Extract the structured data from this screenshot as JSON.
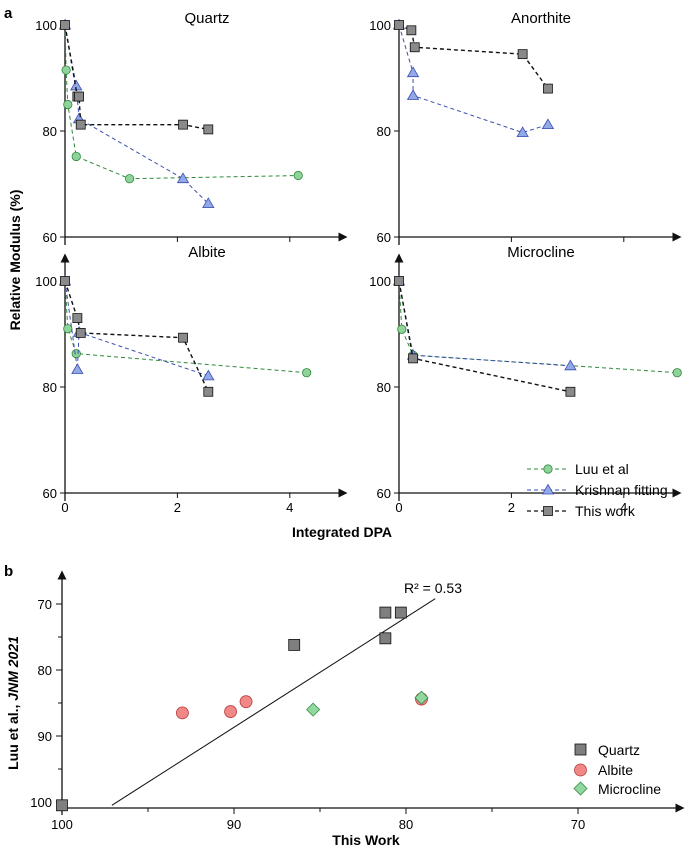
{
  "colors": {
    "luu": "#8fd39a",
    "luu_stroke": "#2e8b3d",
    "krishnan": "#93a8e6",
    "krishnan_stroke": "#3a4fb0",
    "thiswork": "#8a8a8a",
    "thiswork_stroke": "#111111",
    "albite_b": "#f08888",
    "albite_b_stroke": "#b83a3a",
    "micro_b": "#8fd89e",
    "micro_b_stroke": "#3a8b4a",
    "quartz_b": "#7f7f7f"
  },
  "chart_data": [
    {
      "panel_label": "a",
      "type": "line",
      "ylabel": "Relative Modulus (%)",
      "xlabel": "Integrated DPA",
      "xlim": [
        0,
        5
      ],
      "xticks": [
        "0",
        "2",
        "4"
      ],
      "ylim": [
        60,
        103
      ],
      "yticks": [
        "60",
        "80",
        "100"
      ],
      "legend": {
        "placement": "bottom-right of Microcline panel",
        "entries": [
          "Luu et al",
          "Krishnan fitting",
          "This work"
        ]
      },
      "panels": [
        {
          "title": "Quartz",
          "series": [
            {
              "name": "Luu et al",
              "x": [
                0,
                0.02,
                0.05,
                0.2,
                1.15,
                4.15
              ],
              "y": [
                100,
                91.5,
                85,
                75.2,
                71,
                71.6
              ]
            },
            {
              "name": "Krishnan fitting",
              "x": [
                0,
                0.2,
                0.25,
                2.1,
                2.55
              ],
              "y": [
                100,
                88.5,
                82.3,
                71,
                66.3
              ]
            },
            {
              "name": "This work",
              "x": [
                0,
                0.22,
                0.25,
                0.28,
                2.1,
                2.55
              ],
              "y": [
                100,
                86.5,
                86.5,
                81.2,
                81.2,
                80.3
              ]
            }
          ]
        },
        {
          "title": "Anorthite",
          "series": [
            {
              "name": "Krishnan fitting",
              "x": [
                0,
                0.25,
                0.25,
                2.2,
                2.65
              ],
              "y": [
                100,
                91,
                86.7,
                79.7,
                81.2
              ]
            },
            {
              "name": "This work",
              "x": [
                0,
                0.22,
                0.28,
                2.2,
                2.65
              ],
              "y": [
                100,
                99,
                95.8,
                94.5,
                88
              ]
            }
          ]
        },
        {
          "title": "Albite",
          "series": [
            {
              "name": "Luu et al",
              "x": [
                0,
                0.05,
                0.2,
                4.3
              ],
              "y": [
                100,
                91,
                86.3,
                82.7
              ]
            },
            {
              "name": "Krishnan fitting",
              "x": [
                0,
                0.22,
                0.25,
                2.55
              ],
              "y": [
                100,
                83.3,
                90.3,
                82.1
              ]
            },
            {
              "name": "This work",
              "x": [
                0,
                0.22,
                0.28,
                2.1,
                2.55
              ],
              "y": [
                100,
                93,
                90.2,
                89.3,
                79.1
              ]
            }
          ]
        },
        {
          "title": "Microcline",
          "series": [
            {
              "name": "Luu et al",
              "x": [
                0,
                0.05,
                0.25,
                4.95
              ],
              "y": [
                100,
                90.9,
                86,
                82.7
              ]
            },
            {
              "name": "Krishnan fitting",
              "x": [
                0,
                0.25,
                3.05
              ],
              "y": [
                100,
                86,
                84
              ]
            },
            {
              "name": "This work",
              "x": [
                0,
                0.25,
                3.05
              ],
              "y": [
                100,
                85.4,
                79.1
              ]
            }
          ]
        }
      ]
    },
    {
      "panel_label": "b",
      "type": "scatter",
      "xlabel": "This Work",
      "ylabel_plain": "Luu et al., ",
      "ylabel_italic": "JNM 2021",
      "xlim": [
        100,
        64
      ],
      "xticks": [
        "100",
        "90",
        "80",
        "70"
      ],
      "ylim": [
        100.5,
        66.5
      ],
      "yticks": [
        "70",
        "80",
        "90",
        "100"
      ],
      "fit_label": "R² = 0.53",
      "fit_line": {
        "x": [
          97.1,
          78.3
        ],
        "y": [
          100.5,
          69.2
        ]
      },
      "legend": {
        "placement": "bottom-right",
        "entries": [
          "Quartz",
          "Albite",
          "Microcline"
        ]
      },
      "series": [
        {
          "name": "Quartz",
          "x": [
            100,
            86.5,
            81.2,
            81.2,
            80.3
          ],
          "y": [
            100.5,
            76.2,
            75.2,
            71.3,
            71.3
          ]
        },
        {
          "name": "Albite",
          "x": [
            93,
            90.2,
            89.3,
            79.1
          ],
          "y": [
            86.5,
            86.3,
            84.8,
            84.4
          ]
        },
        {
          "name": "Microcline",
          "x": [
            85.4,
            79.1
          ],
          "y": [
            86,
            84.2
          ]
        }
      ]
    }
  ]
}
